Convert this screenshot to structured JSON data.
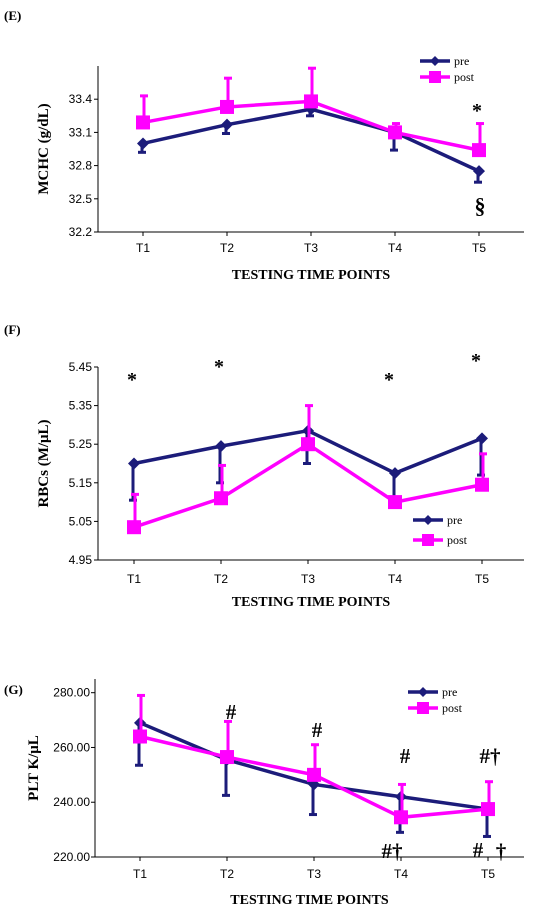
{
  "colors": {
    "pre": "#1c1c7a",
    "post": "#ff00ff",
    "axis": "#000000"
  },
  "chart_data": [
    {
      "type": "line",
      "panel_label": "(E)",
      "ylabel": "MCHC (g/dL)",
      "xlabel": "TESTING TIME POINTS",
      "categories": [
        "T1",
        "T2",
        "T3",
        "T4",
        "T5"
      ],
      "ylim": [
        32.2,
        33.7
      ],
      "yticks": [
        "32.2",
        "32.5",
        "32.8",
        "33.1",
        "33.4"
      ],
      "legend_position": "top-right",
      "series": [
        {
          "name": "pre",
          "values": [
            33.0,
            33.17,
            33.31,
            33.1,
            32.75
          ],
          "errors": [
            0.08,
            0.08,
            0.06,
            0.16,
            0.1
          ]
        },
        {
          "name": "post",
          "values": [
            33.19,
            33.33,
            33.38,
            33.1,
            32.94
          ],
          "errors": [
            0.24,
            0.26,
            0.3,
            0.08,
            0.24
          ]
        }
      ],
      "annotations": [
        {
          "category": "T5",
          "text": "*",
          "position": "above"
        },
        {
          "category": "T5",
          "text": "§",
          "position": "below"
        }
      ]
    },
    {
      "type": "line",
      "panel_label": "(F)",
      "ylabel": "RBCs (M/μL)",
      "xlabel": "TESTING TIME POINTS",
      "categories": [
        "T1",
        "T2",
        "T3",
        "T4",
        "T5"
      ],
      "ylim": [
        4.95,
        5.45
      ],
      "yticks": [
        "4.95",
        "5.05",
        "5.15",
        "5.25",
        "5.35",
        "5.45"
      ],
      "legend_position": "bottom-right",
      "series": [
        {
          "name": "pre",
          "values": [
            5.2,
            5.245,
            5.285,
            5.175,
            5.265
          ],
          "errors": [
            0.095,
            0.095,
            0.085,
            0.07,
            0.095
          ]
        },
        {
          "name": "post",
          "values": [
            5.035,
            5.11,
            5.25,
            5.1,
            5.145
          ],
          "errors": [
            0.085,
            0.085,
            0.1,
            0.0,
            0.08
          ]
        }
      ],
      "annotations": [
        {
          "category": "T1",
          "text": "*",
          "position": "above"
        },
        {
          "category": "T2",
          "text": "*",
          "position": "above"
        },
        {
          "category": "T4",
          "text": "*",
          "position": "above"
        },
        {
          "category": "T5",
          "text": "*",
          "position": "above"
        }
      ]
    },
    {
      "type": "line",
      "panel_label": "(G)",
      "ylabel": "PLT K/μL",
      "xlabel": "TESTING TIME POINTS",
      "categories": [
        "T1",
        "T2",
        "T3",
        "T4",
        "T5"
      ],
      "ylim": [
        220,
        285
      ],
      "yticks": [
        "220.00",
        "240.00",
        "260.00",
        "280.00"
      ],
      "legend_position": "top-right",
      "series": [
        {
          "name": "pre",
          "values": [
            269,
            255.5,
            246.5,
            242,
            237.5
          ],
          "errors": [
            15.5,
            13,
            11,
            13,
            10
          ]
        },
        {
          "name": "post",
          "values": [
            264,
            256.5,
            250,
            234.5,
            237.5
          ],
          "errors": [
            15,
            13,
            11,
            12,
            10
          ]
        }
      ],
      "annotations": [
        {
          "category": "T2",
          "text": "#",
          "position": "above"
        },
        {
          "category": "T3",
          "text": "#",
          "position": "above"
        },
        {
          "category": "T4",
          "text": "#",
          "position": "above"
        },
        {
          "category": "T4",
          "text": "#†",
          "position": "inline"
        },
        {
          "category": "T5",
          "text": "#†",
          "position": "above"
        },
        {
          "category": "T5",
          "text": "#",
          "position": "inline-left"
        },
        {
          "category": "T5",
          "text": "†",
          "position": "inline-right"
        }
      ]
    }
  ]
}
